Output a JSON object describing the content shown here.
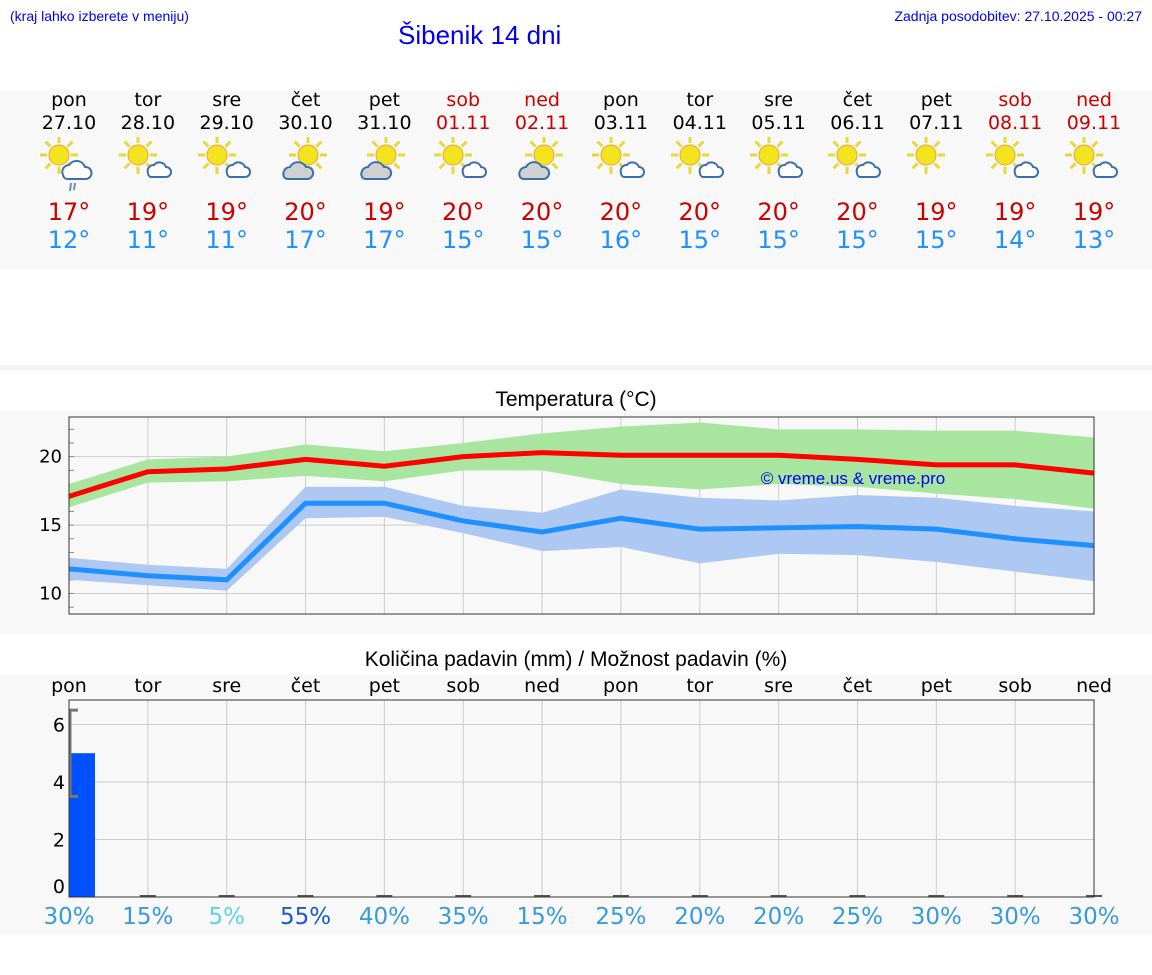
{
  "header": {
    "hint": "(kraj lahko izberete v meniju)",
    "title": "Šibenik 14 dni",
    "updated": "Zadnja posodobitev: 27.10.2025 - 00:27"
  },
  "days": [
    {
      "name": "pon",
      "date": "27.10",
      "hi": "17°",
      "lo": "12°",
      "icon": "sun-cloud-rain",
      "weekend": false
    },
    {
      "name": "tor",
      "date": "28.10",
      "hi": "19°",
      "lo": "11°",
      "icon": "sun-small-cloud",
      "weekend": false
    },
    {
      "name": "sre",
      "date": "29.10",
      "hi": "19°",
      "lo": "11°",
      "icon": "sun-small-cloud",
      "weekend": false
    },
    {
      "name": "čet",
      "date": "30.10",
      "hi": "20°",
      "lo": "17°",
      "icon": "cloud-sun",
      "weekend": false
    },
    {
      "name": "pet",
      "date": "31.10",
      "hi": "19°",
      "lo": "17°",
      "icon": "cloud-sun",
      "weekend": false
    },
    {
      "name": "sob",
      "date": "01.11",
      "hi": "20°",
      "lo": "15°",
      "icon": "sun-small-cloud",
      "weekend": true
    },
    {
      "name": "ned",
      "date": "02.11",
      "hi": "20°",
      "lo": "15°",
      "icon": "cloud-sun",
      "weekend": true
    },
    {
      "name": "pon",
      "date": "03.11",
      "hi": "20°",
      "lo": "16°",
      "icon": "sun-small-cloud",
      "weekend": false
    },
    {
      "name": "tor",
      "date": "04.11",
      "hi": "20°",
      "lo": "15°",
      "icon": "sun-small-cloud",
      "weekend": false
    },
    {
      "name": "sre",
      "date": "05.11",
      "hi": "20°",
      "lo": "15°",
      "icon": "sun-small-cloud",
      "weekend": false
    },
    {
      "name": "čet",
      "date": "06.11",
      "hi": "20°",
      "lo": "15°",
      "icon": "sun-small-cloud",
      "weekend": false
    },
    {
      "name": "pet",
      "date": "07.11",
      "hi": "19°",
      "lo": "15°",
      "icon": "sun",
      "weekend": false
    },
    {
      "name": "sob",
      "date": "08.11",
      "hi": "19°",
      "lo": "14°",
      "icon": "sun-small-cloud",
      "weekend": true
    },
    {
      "name": "ned",
      "date": "09.11",
      "hi": "19°",
      "lo": "13°",
      "icon": "sun-small-cloud",
      "weekend": true
    }
  ],
  "colors": {
    "weekend": "#cc0000",
    "weekday": "#000000",
    "hi": "#cc0000",
    "lo": "#1e90ff"
  },
  "chart_data": [
    {
      "type": "line",
      "title": "Temperatura (°C)",
      "watermark": "© vreme.us & vreme.pro",
      "x": [
        1,
        2,
        3,
        4,
        5,
        6,
        7,
        8,
        9,
        10,
        11,
        12,
        13,
        14
      ],
      "ylim": [
        8.5,
        22.9
      ],
      "yticks": [
        10,
        15,
        20
      ],
      "series": [
        {
          "name": "max",
          "color": "#ff0000",
          "band_color": "#a8e6a0",
          "values": [
            17.1,
            18.9,
            19.1,
            19.8,
            19.3,
            20.0,
            20.3,
            20.1,
            20.1,
            20.1,
            19.8,
            19.4,
            19.4,
            18.8
          ],
          "upper": [
            18.0,
            19.8,
            20.0,
            20.9,
            20.4,
            21.0,
            21.7,
            22.2,
            22.5,
            22.0,
            22.0,
            21.9,
            21.9,
            21.4
          ],
          "lower": [
            16.3,
            18.1,
            18.2,
            18.6,
            18.2,
            19.0,
            19.0,
            18.0,
            17.6,
            18.0,
            17.8,
            17.3,
            16.9,
            16.2
          ]
        },
        {
          "name": "min",
          "color": "#1e90ff",
          "band_color": "#adc8f2",
          "values": [
            11.8,
            11.3,
            11.0,
            16.6,
            16.6,
            15.3,
            14.5,
            15.5,
            14.7,
            14.8,
            14.9,
            14.7,
            14.0,
            13.5
          ],
          "upper": [
            12.6,
            12.1,
            11.8,
            17.8,
            17.8,
            16.4,
            15.9,
            17.6,
            17.0,
            16.8,
            17.2,
            17.0,
            16.4,
            16.0
          ],
          "lower": [
            11.0,
            10.6,
            10.2,
            15.5,
            15.6,
            14.4,
            13.1,
            13.4,
            12.2,
            12.9,
            12.8,
            12.3,
            11.6,
            10.9
          ]
        }
      ]
    },
    {
      "type": "bar",
      "title": "Količina padavin (mm) / Možnost padavin (%)",
      "categories": [
        "pon",
        "tor",
        "sre",
        "čet",
        "pet",
        "sob",
        "ned",
        "pon",
        "tor",
        "sre",
        "čet",
        "pet",
        "sob",
        "ned"
      ],
      "values": [
        5.0,
        0,
        0,
        0,
        0,
        0,
        0,
        0,
        0,
        0,
        0,
        0,
        0,
        0
      ],
      "error_range": [
        3.5,
        6.5
      ],
      "ylim": [
        0,
        6.85
      ],
      "yticks": [
        0,
        2,
        4,
        6
      ],
      "probability": [
        "30%",
        "15%",
        "5%",
        "55%",
        "40%",
        "35%",
        "15%",
        "25%",
        "20%",
        "20%",
        "25%",
        "30%",
        "30%",
        "30%"
      ],
      "probability_colors": [
        "#3a9ad9",
        "#3a9ad9",
        "#5dd3e8",
        "#1a5cc0",
        "#3a9ad9",
        "#3a9ad9",
        "#3a9ad9",
        "#3a9ad9",
        "#3a9ad9",
        "#3a9ad9",
        "#3a9ad9",
        "#3a9ad9",
        "#3a9ad9",
        "#3a9ad9"
      ]
    }
  ]
}
